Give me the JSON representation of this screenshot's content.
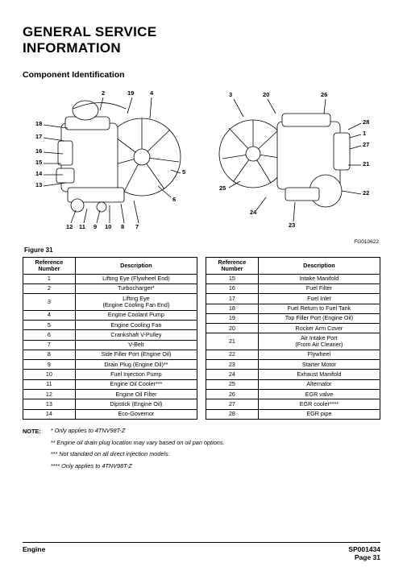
{
  "title_line1": "GENERAL SERVICE",
  "title_line2": "INFORMATION",
  "subtitle": "Component Identification",
  "figure_id": "FG010622",
  "figure_caption": "Figure 31",
  "callouts_left": {
    "c18": "18",
    "c17": "17",
    "c16": "16",
    "c15": "15",
    "c14": "14",
    "c13": "13",
    "c2": "2",
    "c19": "19",
    "c4": "4",
    "c5": "5",
    "c6": "6",
    "c12": "12",
    "c11": "11",
    "c9": "9",
    "c10": "10",
    "c8": "8",
    "c7": "7"
  },
  "callouts_right": {
    "c3": "3",
    "c20": "20",
    "c26": "26",
    "c28": "28",
    "c1": "1",
    "c27": "27",
    "c21": "21",
    "c22": "22",
    "c25": "25",
    "c24": "24",
    "c23": "23"
  },
  "table_header_ref": "Reference\nNumber",
  "table_header_desc": "Description",
  "table_left": [
    {
      "n": "1",
      "d": "Lifting Eye (Flywheel End)"
    },
    {
      "n": "2",
      "d": "Turbocharger*"
    },
    {
      "n": "3",
      "d": "Lifting Eye\n(Engine Cooling Fan End)"
    },
    {
      "n": "4",
      "d": "Engine Coolant Pump"
    },
    {
      "n": "5",
      "d": "Engine Cooling Fan"
    },
    {
      "n": "6",
      "d": "Crankshaft V-Pulley"
    },
    {
      "n": "7",
      "d": "V-Belt"
    },
    {
      "n": "8",
      "d": "Side Filler Port (Engine Oil)"
    },
    {
      "n": "9",
      "d": "Drain Plug (Engine Oil)**"
    },
    {
      "n": "10",
      "d": "Fuel Injection Pump"
    },
    {
      "n": "11",
      "d": "Engine Oil Cooler***"
    },
    {
      "n": "12",
      "d": "Engine Oil Filter"
    },
    {
      "n": "13",
      "d": "Dipstick (Engine Oil)"
    },
    {
      "n": "14",
      "d": "Eco-Governor"
    }
  ],
  "table_right": [
    {
      "n": "15",
      "d": "Intake Manifold"
    },
    {
      "n": "16",
      "d": "Fuel Filter"
    },
    {
      "n": "17",
      "d": "Fuel Inlet"
    },
    {
      "n": "18",
      "d": "Fuel Return to Fuel Tank"
    },
    {
      "n": "19",
      "d": "Top Filler Port (Engine Oil)"
    },
    {
      "n": "20",
      "d": "Rocker Arm Cover"
    },
    {
      "n": "21",
      "d": "Air Intake Port\n(From Air Cleaner)"
    },
    {
      "n": "22",
      "d": "Flywheel"
    },
    {
      "n": "23",
      "d": "Starter Motor"
    },
    {
      "n": "24",
      "d": "Exhaust Manifold"
    },
    {
      "n": "25",
      "d": "Alternator"
    },
    {
      "n": "26",
      "d": "EGR valve"
    },
    {
      "n": "27",
      "d": "EGR cooler****"
    },
    {
      "n": "28",
      "d": "EGR pipe"
    }
  ],
  "note_label": "NOTE:",
  "notes": [
    "* Only applies to 4TNV98T-Z",
    "** Engine oil drain plug location may vary based on oil pan options.",
    "*** Not standard on all direct injection models.",
    "**** Only applies to 4TNV98T-Z"
  ],
  "footer_left": "Engine",
  "footer_right_code": "SP001434",
  "footer_right_page": "Page 31"
}
